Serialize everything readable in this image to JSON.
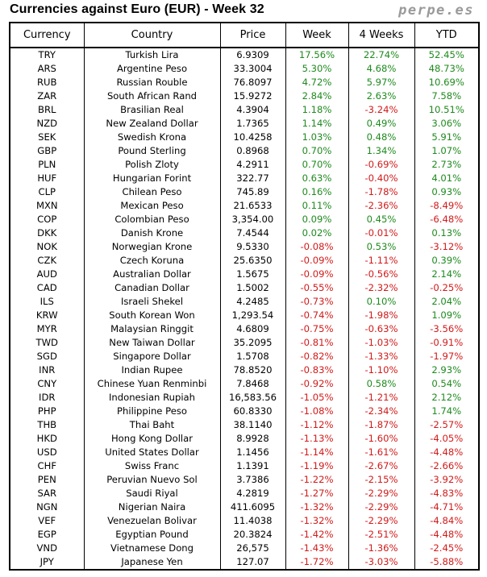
{
  "title": "Currencies against Euro (EUR) - Week 32",
  "brand": "perpe.es",
  "colors": {
    "positive": "#1e8a1e",
    "negative": "#d21a1a"
  },
  "chart_data": {
    "type": "table",
    "title": "Currencies against Euro (EUR) - Week 32",
    "columns": [
      "Currency",
      "Country",
      "Price",
      "Week",
      "4 Weeks",
      "YTD"
    ],
    "rows": [
      [
        "TRY",
        "Turkish Lira",
        "6.9309",
        "17.56%",
        "22.74%",
        "52.45%"
      ],
      [
        "ARS",
        "Argentine Peso",
        "33.3004",
        "5.30%",
        "4.68%",
        "48.73%"
      ],
      [
        "RUB",
        "Russian Rouble",
        "76.8097",
        "4.72%",
        "5.97%",
        "10.69%"
      ],
      [
        "ZAR",
        "South African Rand",
        "15.9272",
        "2.84%",
        "2.63%",
        "7.58%"
      ],
      [
        "BRL",
        "Brasilian Real",
        "4.3904",
        "1.18%",
        "-3.24%",
        "10.51%"
      ],
      [
        "NZD",
        "New Zealand Dollar",
        "1.7365",
        "1.14%",
        "0.49%",
        "3.06%"
      ],
      [
        "SEK",
        "Swedish Krona",
        "10.4258",
        "1.03%",
        "0.48%",
        "5.91%"
      ],
      [
        "GBP",
        "Pound Sterling",
        "0.8968",
        "0.70%",
        "1.34%",
        "1.07%"
      ],
      [
        "PLN",
        "Polish Zloty",
        "4.2911",
        "0.70%",
        "-0.69%",
        "2.73%"
      ],
      [
        "HUF",
        "Hungarian Forint",
        "322.77",
        "0.63%",
        "-0.40%",
        "4.01%"
      ],
      [
        "CLP",
        "Chilean Peso",
        "745.89",
        "0.16%",
        "-1.78%",
        "0.93%"
      ],
      [
        "MXN",
        "Mexican Peso",
        "21.6533",
        "0.11%",
        "-2.36%",
        "-8.49%"
      ],
      [
        "COP",
        "Colombian Peso",
        "3,354.00",
        "0.09%",
        "0.45%",
        "-6.48%"
      ],
      [
        "DKK",
        "Danish Krone",
        "7.4544",
        "0.02%",
        "-0.01%",
        "0.13%"
      ],
      [
        "NOK",
        "Norwegian Krone",
        "9.5330",
        "-0.08%",
        "0.53%",
        "-3.12%"
      ],
      [
        "CZK",
        "Czech Koruna",
        "25.6350",
        "-0.09%",
        "-1.11%",
        "0.39%"
      ],
      [
        "AUD",
        "Australian Dollar",
        "1.5675",
        "-0.09%",
        "-0.56%",
        "2.14%"
      ],
      [
        "CAD",
        "Canadian Dollar",
        "1.5002",
        "-0.55%",
        "-2.32%",
        "-0.25%"
      ],
      [
        "ILS",
        "Israeli Shekel",
        "4.2485",
        "-0.73%",
        "0.10%",
        "2.04%"
      ],
      [
        "KRW",
        "South Korean Won",
        "1,293.54",
        "-0.74%",
        "-1.98%",
        "1.09%"
      ],
      [
        "MYR",
        "Malaysian Ringgit",
        "4.6809",
        "-0.75%",
        "-0.63%",
        "-3.56%"
      ],
      [
        "TWD",
        "New Taiwan Dollar",
        "35.2095",
        "-0.81%",
        "-1.03%",
        "-0.91%"
      ],
      [
        "SGD",
        "Singapore Dollar",
        "1.5708",
        "-0.82%",
        "-1.33%",
        "-1.97%"
      ],
      [
        "INR",
        "Indian Rupee",
        "78.8520",
        "-0.83%",
        "-1.10%",
        "2.93%"
      ],
      [
        "CNY",
        "Chinese Yuan Renminbi",
        "7.8468",
        "-0.92%",
        "0.58%",
        "0.54%"
      ],
      [
        "IDR",
        "Indonesian Rupiah",
        "16,583.56",
        "-1.05%",
        "-1.21%",
        "2.12%"
      ],
      [
        "PHP",
        "Philippine Peso",
        "60.8330",
        "-1.08%",
        "-2.34%",
        "1.74%"
      ],
      [
        "THB",
        "Thai Baht",
        "38.1140",
        "-1.12%",
        "-1.87%",
        "-2.57%"
      ],
      [
        "HKD",
        "Hong Kong Dollar",
        "8.9928",
        "-1.13%",
        "-1.60%",
        "-4.05%"
      ],
      [
        "USD",
        "United States Dollar",
        "1.1456",
        "-1.14%",
        "-1.61%",
        "-4.48%"
      ],
      [
        "CHF",
        "Swiss Franc",
        "1.1391",
        "-1.19%",
        "-2.67%",
        "-2.66%"
      ],
      [
        "PEN",
        "Peruvian Nuevo Sol",
        "3.7386",
        "-1.22%",
        "-2.15%",
        "-3.92%"
      ],
      [
        "SAR",
        "Saudi Riyal",
        "4.2819",
        "-1.27%",
        "-2.29%",
        "-4.83%"
      ],
      [
        "NGN",
        "Nigerian Naira",
        "411.6095",
        "-1.32%",
        "-2.29%",
        "-4.71%"
      ],
      [
        "VEF",
        "Venezuelan Bolivar",
        "11.4038",
        "-1.32%",
        "-2.29%",
        "-4.84%"
      ],
      [
        "EGP",
        "Egyptian Pound",
        "20.3824",
        "-1.42%",
        "-2.51%",
        "-4.48%"
      ],
      [
        "VND",
        "Vietnamese Dong",
        "26,575",
        "-1.43%",
        "-1.36%",
        "-2.45%"
      ],
      [
        "JPY",
        "Japanese Yen",
        "127.07",
        "-1.72%",
        "-3.03%",
        "-5.88%"
      ]
    ]
  }
}
